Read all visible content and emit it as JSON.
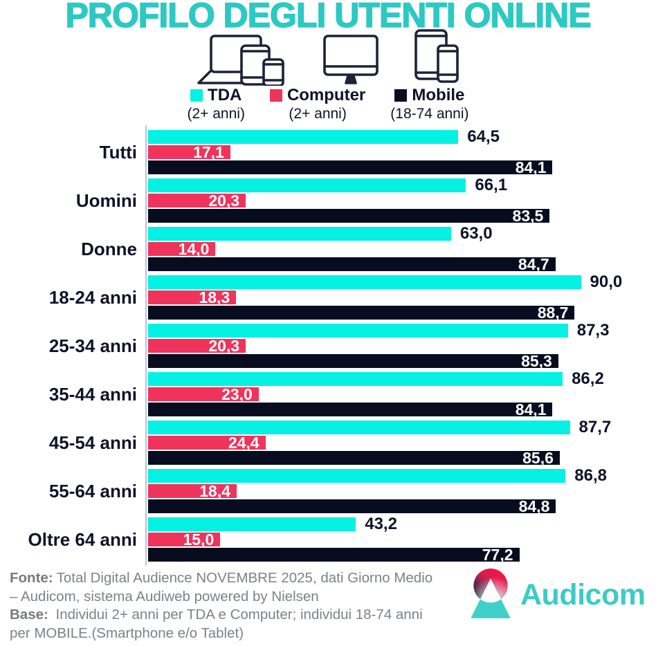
{
  "title": "PROFILO DEGLI UTENTI ONLINE",
  "icons": [
    "laptop-tablet-smartphone-icon",
    "desktop-monitor-icon",
    "tablet-smartphone-icon"
  ],
  "colors": {
    "title_teal": "#2CC9C3",
    "tda_cyan": "#04F1E3",
    "computer_pink": "#F0335B",
    "mobile_navy": "#070D1F",
    "text_dark": "#0D1328",
    "axis_gray": "#B8C4DE",
    "footer_gray": "#7D8186",
    "logo_teal": "#3CCBC5"
  },
  "chart_data": {
    "type": "bar",
    "orientation": "horizontal",
    "title": "PROFILO DEGLI UTENTI ONLINE",
    "categories": [
      "Tutti",
      "Uomini",
      "Donne",
      "18-24 anni",
      "25-34 anni",
      "35-44 anni",
      "45-54 anni",
      "55-64 anni",
      "Oltre 64 anni"
    ],
    "series": [
      {
        "name": "TDA",
        "subtitle": "(2+ anni)",
        "color": "#04F1E3",
        "value_labels": "outside",
        "values": [
          64.5,
          66.1,
          63.0,
          90.0,
          87.3,
          86.2,
          87.7,
          86.8,
          43.2
        ]
      },
      {
        "name": "Computer",
        "subtitle": "(2+ anni)",
        "color": "#F0335B",
        "value_labels": "inside",
        "values": [
          17.1,
          20.3,
          14.0,
          18.3,
          20.3,
          23.0,
          24.4,
          18.4,
          15.0
        ]
      },
      {
        "name": "Mobile",
        "subtitle": "(18-74 anni)",
        "color": "#070D1F",
        "value_labels": "inside",
        "values": [
          84.1,
          83.5,
          84.7,
          88.7,
          85.3,
          84.1,
          85.6,
          84.8,
          77.2
        ]
      }
    ],
    "xlim": [
      0,
      100
    ],
    "grid": false,
    "legend_position": "top",
    "decimal_separator": ","
  },
  "footer": {
    "lines": [
      {
        "bold": "Fonte:",
        "text": "Total Digital Audience NOVEMBRE 2025, dati Giorno Medio"
      },
      {
        "bold": "",
        "text": "– Audicom, sistema Audiweb powered by Nielsen"
      },
      {
        "bold": "Base:",
        "text": " Individui 2+ anni per TDA e Computer; individui 18-74 anni"
      },
      {
        "bold": "",
        "text": "per MOBILE.(Smartphone e/o Tablet)"
      }
    ]
  },
  "logo": {
    "text": "Audicom"
  }
}
